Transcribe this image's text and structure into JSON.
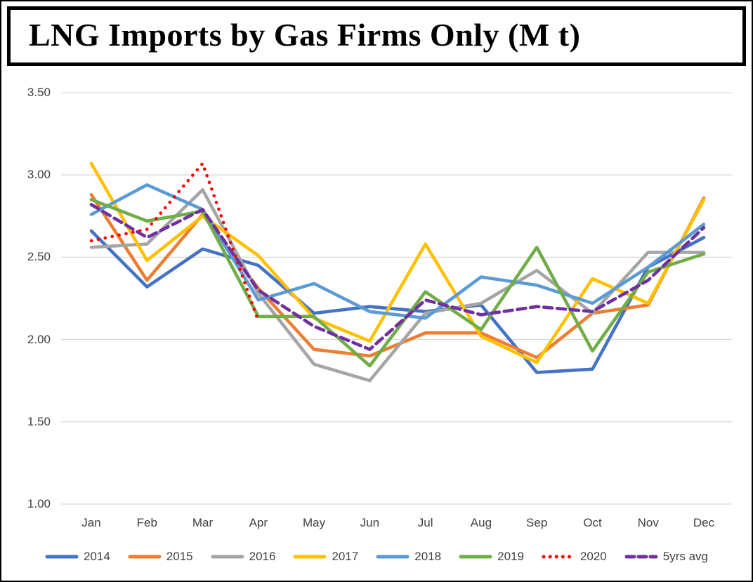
{
  "title": {
    "text": "LNG Imports by Gas Firms Only (M t)"
  },
  "axis": {
    "label_color": "#404040",
    "gridline_color": "#D9D9D9"
  },
  "chart_data": {
    "type": "line",
    "title": "LNG Imports by Gas Firms Only (M t)",
    "unit": "M t",
    "x_categories": [
      "Jan",
      "Feb",
      "Mar",
      "Apr",
      "May",
      "Jun",
      "Jul",
      "Aug",
      "Sep",
      "Oct",
      "Nov",
      "Dec"
    ],
    "y_ticks": [
      "3.50",
      "3.00",
      "2.50",
      "2.00",
      "1.50",
      "1.00"
    ],
    "ylim": [
      1.0,
      3.5
    ],
    "grid": "horizontal-only",
    "legend_position": "bottom",
    "series": [
      {
        "name": "2014",
        "color": "#4472C4",
        "style": "solid",
        "values": [
          2.66,
          2.32,
          2.55,
          2.45,
          2.16,
          2.2,
          2.17,
          2.21,
          1.8,
          1.82,
          2.44,
          2.62
        ]
      },
      {
        "name": "2015",
        "color": "#ED7D31",
        "style": "solid",
        "values": [
          2.88,
          2.36,
          2.76,
          2.31,
          1.94,
          1.9,
          2.04,
          2.04,
          1.89,
          2.16,
          2.21,
          2.86
        ]
      },
      {
        "name": "2016",
        "color": "#A5A5A5",
        "style": "solid",
        "values": [
          2.56,
          2.58,
          2.91,
          2.28,
          1.85,
          1.75,
          2.16,
          2.22,
          2.42,
          2.16,
          2.53,
          2.53
        ]
      },
      {
        "name": "2017",
        "color": "#FFC000",
        "style": "solid",
        "values": [
          3.07,
          2.48,
          2.75,
          2.51,
          2.13,
          1.99,
          2.58,
          2.02,
          1.86,
          2.37,
          2.22,
          2.85
        ]
      },
      {
        "name": "2018",
        "color": "#5B9BD5",
        "style": "solid",
        "values": [
          2.76,
          2.94,
          2.79,
          2.24,
          2.34,
          2.17,
          2.13,
          2.38,
          2.33,
          2.22,
          2.44,
          2.7
        ]
      },
      {
        "name": "2019",
        "color": "#70AD47",
        "style": "solid",
        "values": [
          2.85,
          2.72,
          2.78,
          2.14,
          2.14,
          1.84,
          2.29,
          2.06,
          2.56,
          1.93,
          2.41,
          2.52
        ]
      },
      {
        "name": "2020",
        "color": "#FF0000",
        "style": "dotted",
        "values": [
          2.6,
          2.67,
          3.07,
          2.11,
          null,
          null,
          null,
          null,
          null,
          null,
          null,
          null
        ]
      },
      {
        "name": "5yrs avg",
        "color": "#7030A0",
        "style": "dashed",
        "values": [
          2.82,
          2.62,
          2.79,
          2.3,
          2.08,
          1.94,
          2.24,
          2.15,
          2.2,
          2.17,
          2.36,
          2.68
        ]
      }
    ]
  }
}
